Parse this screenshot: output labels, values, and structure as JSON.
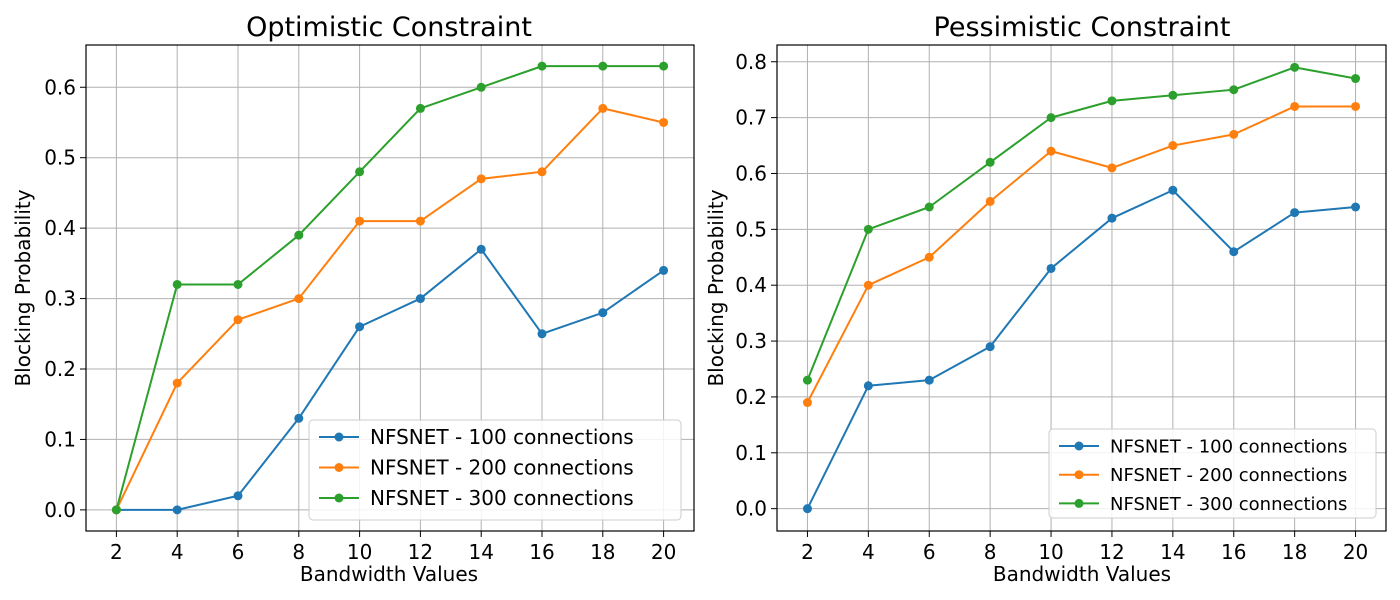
{
  "chart_data": [
    {
      "type": "line",
      "title": "Optimistic Constraint",
      "xlabel": "Bandwidth Values",
      "ylabel": "Blocking Probability",
      "x": [
        2,
        4,
        6,
        8,
        10,
        12,
        14,
        16,
        18,
        20
      ],
      "xticks": [
        "2",
        "4",
        "6",
        "8",
        "10",
        "12",
        "14",
        "16",
        "18",
        "20"
      ],
      "yticks": [
        "0.0",
        "0.1",
        "0.2",
        "0.3",
        "0.4",
        "0.5",
        "0.6"
      ],
      "ylim": [
        -0.03,
        0.66
      ],
      "grid": true,
      "legend_position": "lower-right",
      "series": [
        {
          "name": "NFSNET - 100 connections",
          "color": "#1f77b4",
          "values": [
            0.0,
            0.0,
            0.02,
            0.13,
            0.26,
            0.3,
            0.37,
            0.25,
            0.28,
            0.34
          ]
        },
        {
          "name": "NFSNET - 200 connections",
          "color": "#ff7f0e",
          "values": [
            0.0,
            0.18,
            0.27,
            0.3,
            0.41,
            0.41,
            0.47,
            0.48,
            0.57,
            0.55
          ]
        },
        {
          "name": "NFSNET - 300 connections",
          "color": "#2ca02c",
          "values": [
            0.0,
            0.32,
            0.32,
            0.39,
            0.48,
            0.57,
            0.6,
            0.63,
            0.63,
            0.63
          ]
        }
      ]
    },
    {
      "type": "line",
      "title": "Pessimistic Constraint",
      "xlabel": "Bandwidth Values",
      "ylabel": "Blocking Probability",
      "x": [
        2,
        4,
        6,
        8,
        10,
        12,
        14,
        16,
        18,
        20
      ],
      "xticks": [
        "2",
        "4",
        "6",
        "8",
        "10",
        "12",
        "14",
        "16",
        "18",
        "20"
      ],
      "yticks": [
        "0.0",
        "0.1",
        "0.2",
        "0.3",
        "0.4",
        "0.5",
        "0.6",
        "0.7",
        "0.8"
      ],
      "ylim": [
        -0.04,
        0.83
      ],
      "grid": true,
      "legend_position": "lower-right",
      "series": [
        {
          "name": "NFSNET - 100 connections",
          "color": "#1f77b4",
          "values": [
            0.0,
            0.22,
            0.23,
            0.29,
            0.43,
            0.52,
            0.57,
            0.46,
            0.53,
            0.54
          ]
        },
        {
          "name": "NFSNET - 200 connections",
          "color": "#ff7f0e",
          "values": [
            0.19,
            0.4,
            0.45,
            0.55,
            0.64,
            0.61,
            0.65,
            0.67,
            0.72,
            0.72
          ]
        },
        {
          "name": "NFSNET - 300 connections",
          "color": "#2ca02c",
          "values": [
            0.23,
            0.5,
            0.54,
            0.62,
            0.7,
            0.73,
            0.74,
            0.75,
            0.79,
            0.77
          ]
        }
      ]
    }
  ]
}
